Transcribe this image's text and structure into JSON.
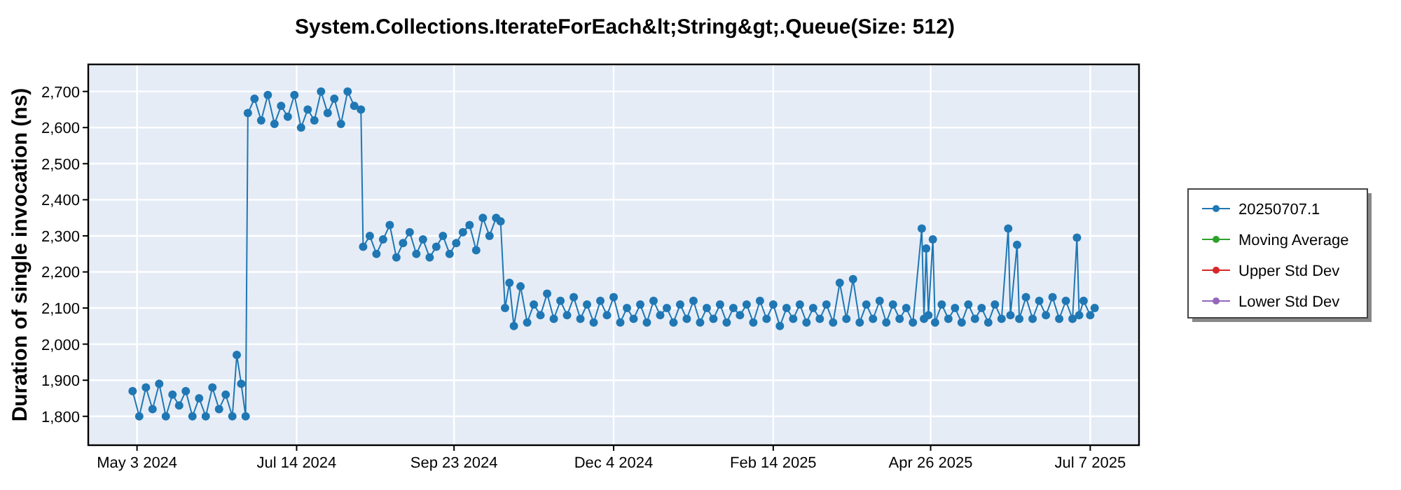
{
  "chart_data": {
    "type": "line",
    "title": "System.Collections.IterateForEach&lt;String&gt;.Queue(Size: 512)",
    "ylabel": "Duration of single invocation (ns)",
    "x": [
      "2024-05-01",
      "2024-05-04",
      "2024-05-07",
      "2024-05-10",
      "2024-05-13",
      "2024-05-16",
      "2024-05-19",
      "2024-05-22",
      "2024-05-25",
      "2024-05-28",
      "2024-05-31",
      "2024-06-03",
      "2024-06-06",
      "2024-06-09",
      "2024-06-12",
      "2024-06-15",
      "2024-06-17",
      "2024-06-19",
      "2024-06-21",
      "2024-06-22",
      "2024-06-25",
      "2024-06-28",
      "2024-07-01",
      "2024-07-04",
      "2024-07-07",
      "2024-07-10",
      "2024-07-13",
      "2024-07-16",
      "2024-07-19",
      "2024-07-22",
      "2024-07-25",
      "2024-07-28",
      "2024-07-31",
      "2024-08-03",
      "2024-08-06",
      "2024-08-09",
      "2024-08-12",
      "2024-08-13",
      "2024-08-16",
      "2024-08-19",
      "2024-08-22",
      "2024-08-25",
      "2024-08-28",
      "2024-08-31",
      "2024-09-03",
      "2024-09-06",
      "2024-09-09",
      "2024-09-12",
      "2024-09-15",
      "2024-09-18",
      "2024-09-21",
      "2024-09-24",
      "2024-09-27",
      "2024-09-30",
      "2024-10-03",
      "2024-10-06",
      "2024-10-09",
      "2024-10-12",
      "2024-10-14",
      "2024-10-16",
      "2024-10-18",
      "2024-10-20",
      "2024-10-23",
      "2024-10-26",
      "2024-10-29",
      "2024-11-01",
      "2024-11-04",
      "2024-11-07",
      "2024-11-10",
      "2024-11-13",
      "2024-11-16",
      "2024-11-19",
      "2024-11-22",
      "2024-11-25",
      "2024-11-28",
      "2024-12-01",
      "2024-12-04",
      "2024-12-07",
      "2024-12-10",
      "2024-12-13",
      "2024-12-16",
      "2024-12-19",
      "2024-12-22",
      "2024-12-25",
      "2024-12-28",
      "2024-12-31",
      "2025-01-03",
      "2025-01-06",
      "2025-01-09",
      "2025-01-12",
      "2025-01-15",
      "2025-01-18",
      "2025-01-21",
      "2025-01-24",
      "2025-01-27",
      "2025-01-30",
      "2025-02-02",
      "2025-02-05",
      "2025-02-08",
      "2025-02-11",
      "2025-02-14",
      "2025-02-17",
      "2025-02-20",
      "2025-02-23",
      "2025-02-26",
      "2025-03-01",
      "2025-03-04",
      "2025-03-07",
      "2025-03-10",
      "2025-03-13",
      "2025-03-16",
      "2025-03-19",
      "2025-03-22",
      "2025-03-25",
      "2025-03-28",
      "2025-03-31",
      "2025-04-03",
      "2025-04-06",
      "2025-04-09",
      "2025-04-12",
      "2025-04-15",
      "2025-04-18",
      "2025-04-22",
      "2025-04-23",
      "2025-04-24",
      "2025-04-25",
      "2025-04-27",
      "2025-04-28",
      "2025-05-01",
      "2025-05-04",
      "2025-05-07",
      "2025-05-10",
      "2025-05-13",
      "2025-05-16",
      "2025-05-19",
      "2025-05-22",
      "2025-05-25",
      "2025-05-28",
      "2025-05-31",
      "2025-06-01",
      "2025-06-04",
      "2025-06-05",
      "2025-06-08",
      "2025-06-11",
      "2025-06-14",
      "2025-06-17",
      "2025-06-20",
      "2025-06-23",
      "2025-06-26",
      "2025-06-29",
      "2025-07-01",
      "2025-07-02",
      "2025-07-04",
      "2025-07-07",
      "2025-07-09"
    ],
    "series": [
      {
        "name": "20250707.1",
        "color": "#1f77b4",
        "values": [
          1870,
          1800,
          1880,
          1820,
          1890,
          1800,
          1860,
          1830,
          1870,
          1800,
          1850,
          1800,
          1880,
          1820,
          1860,
          1800,
          1970,
          1890,
          1800,
          2640,
          2680,
          2620,
          2690,
          2610,
          2660,
          2630,
          2690,
          2600,
          2650,
          2620,
          2700,
          2640,
          2680,
          2610,
          2700,
          2660,
          2650,
          2270,
          2300,
          2250,
          2290,
          2330,
          2240,
          2280,
          2310,
          2250,
          2290,
          2240,
          2270,
          2300,
          2250,
          2280,
          2310,
          2330,
          2260,
          2350,
          2300,
          2350,
          2340,
          2100,
          2170,
          2050,
          2160,
          2060,
          2110,
          2080,
          2140,
          2070,
          2120,
          2080,
          2130,
          2070,
          2110,
          2060,
          2120,
          2080,
          2130,
          2060,
          2100,
          2070,
          2110,
          2060,
          2120,
          2080,
          2100,
          2060,
          2110,
          2070,
          2120,
          2060,
          2100,
          2070,
          2110,
          2060,
          2100,
          2080,
          2110,
          2060,
          2120,
          2070,
          2110,
          2050,
          2100,
          2070,
          2110,
          2060,
          2100,
          2070,
          2110,
          2060,
          2170,
          2070,
          2180,
          2060,
          2110,
          2070,
          2120,
          2060,
          2110,
          2070,
          2100,
          2060,
          2320,
          2070,
          2265,
          2080,
          2290,
          2060,
          2110,
          2070,
          2100,
          2060,
          2110,
          2070,
          2100,
          2060,
          2110,
          2070,
          2320,
          2080,
          2275,
          2070,
          2130,
          2070,
          2120,
          2080,
          2130,
          2070,
          2120,
          2070,
          2295,
          2080,
          2120,
          2080,
          2100
        ]
      },
      {
        "name": "Moving Average",
        "color": "#2ca02c",
        "values": [
          null,
          null,
          null,
          null,
          null,
          null,
          null,
          null,
          null,
          null,
          null,
          null,
          null,
          null,
          null,
          null,
          null,
          null,
          null,
          null,
          null,
          null,
          null,
          null,
          null,
          null,
          null,
          null,
          null,
          null,
          null,
          null,
          null,
          null,
          null,
          null,
          null,
          null,
          null,
          null,
          null,
          null,
          null,
          null,
          null,
          null,
          null,
          null,
          null,
          null,
          null,
          null,
          null,
          null,
          null,
          null,
          null,
          null,
          null,
          null,
          null,
          null,
          null,
          null,
          null,
          null,
          null,
          null,
          null,
          null,
          null,
          null,
          null,
          null,
          null,
          null,
          null,
          null,
          null,
          null,
          null,
          null,
          null,
          null,
          null,
          null,
          null,
          null,
          null,
          null,
          null,
          null,
          null,
          null,
          null,
          null,
          null,
          null,
          null,
          null,
          null,
          null,
          null,
          null,
          null,
          null,
          null,
          null,
          null,
          null,
          null,
          null,
          null,
          null,
          null,
          null,
          null,
          null,
          null,
          null,
          null,
          null,
          null,
          null,
          null,
          null,
          null,
          null,
          null,
          null,
          null,
          null,
          null,
          null,
          null,
          null,
          null,
          null,
          null,
          null,
          null,
          null,
          null,
          null,
          null,
          null,
          null,
          null,
          null,
          null,
          null,
          null,
          null,
          null,
          null
        ]
      },
      {
        "name": "Upper Std Dev",
        "color": "#d62728",
        "values": [
          null,
          null,
          null,
          null,
          null,
          null,
          null,
          null,
          null,
          null,
          null,
          null,
          null,
          null,
          null,
          null,
          null,
          null,
          null,
          null,
          null,
          null,
          null,
          null,
          null,
          null,
          null,
          null,
          null,
          null,
          null,
          null,
          null,
          null,
          null,
          null,
          null,
          null,
          null,
          null,
          null,
          null,
          null,
          null,
          null,
          null,
          null,
          null,
          null,
          null,
          null,
          null,
          null,
          null,
          null,
          null,
          null,
          null,
          null,
          null,
          null,
          null,
          null,
          null,
          null,
          null,
          null,
          null,
          null,
          null,
          null,
          null,
          null,
          null,
          null,
          null,
          null,
          null,
          null,
          null,
          null,
          null,
          null,
          null,
          null,
          null,
          null,
          null,
          null,
          null,
          null,
          null,
          null,
          null,
          null,
          null,
          null,
          null,
          null,
          null,
          null,
          null,
          null,
          null,
          null,
          null,
          null,
          null,
          null,
          null,
          null,
          null,
          null,
          null,
          null,
          null,
          null,
          null,
          null,
          null,
          null,
          null,
          null,
          null,
          null,
          null,
          null,
          null,
          null,
          null,
          null,
          null,
          null,
          null,
          null,
          null,
          null,
          null,
          null,
          null,
          null,
          null,
          null,
          null,
          null,
          null,
          null,
          null,
          null,
          null,
          null,
          null,
          null,
          null,
          null
        ]
      },
      {
        "name": "Lower Std Dev",
        "color": "#9467bd",
        "values": [
          null,
          null,
          null,
          null,
          null,
          null,
          null,
          null,
          null,
          null,
          null,
          null,
          null,
          null,
          null,
          null,
          null,
          null,
          null,
          null,
          null,
          null,
          null,
          null,
          null,
          null,
          null,
          null,
          null,
          null,
          null,
          null,
          null,
          null,
          null,
          null,
          null,
          null,
          null,
          null,
          null,
          null,
          null,
          null,
          null,
          null,
          null,
          null,
          null,
          null,
          null,
          null,
          null,
          null,
          null,
          null,
          null,
          null,
          null,
          null,
          null,
          null,
          null,
          null,
          null,
          null,
          null,
          null,
          null,
          null,
          null,
          null,
          null,
          null,
          null,
          null,
          null,
          null,
          null,
          null,
          null,
          null,
          null,
          null,
          null,
          null,
          null,
          null,
          null,
          null,
          null,
          null,
          null,
          null,
          null,
          null,
          null,
          null,
          null,
          null,
          null,
          null,
          null,
          null,
          null,
          null,
          null,
          null,
          null,
          null,
          null,
          null,
          null,
          null,
          null,
          null,
          null,
          null,
          null,
          null,
          null,
          null,
          null,
          null,
          null,
          null,
          null,
          null,
          null,
          null,
          null,
          null,
          null,
          null,
          null,
          null,
          null,
          null,
          null,
          null,
          null,
          null,
          null,
          null,
          null,
          null,
          null,
          null,
          null,
          null,
          null,
          null,
          null,
          null,
          null
        ]
      }
    ],
    "xlim": [
      "2024-04-11",
      "2025-07-29"
    ],
    "xticks": [
      {
        "value": "2024-05-03",
        "label": "May 3 2024"
      },
      {
        "value": "2024-07-14",
        "label": "Jul 14 2024"
      },
      {
        "value": "2024-09-23",
        "label": "Sep 23 2024"
      },
      {
        "value": "2024-12-04",
        "label": "Dec 4 2024"
      },
      {
        "value": "2025-02-14",
        "label": "Feb 14 2025"
      },
      {
        "value": "2025-04-26",
        "label": "Apr 26 2025"
      },
      {
        "value": "2025-07-07",
        "label": "Jul 7 2025"
      }
    ],
    "ylim": [
      1720,
      2775
    ],
    "yticks": [
      {
        "value": 1800,
        "label": "1,800"
      },
      {
        "value": 1900,
        "label": "1,900"
      },
      {
        "value": 2000,
        "label": "2,000"
      },
      {
        "value": 2100,
        "label": "2,100"
      },
      {
        "value": 2200,
        "label": "2,200"
      },
      {
        "value": 2300,
        "label": "2,300"
      },
      {
        "value": 2400,
        "label": "2,400"
      },
      {
        "value": 2500,
        "label": "2,500"
      },
      {
        "value": 2600,
        "label": "2,600"
      },
      {
        "value": 2700,
        "label": "2,700"
      }
    ],
    "grid": true,
    "legend": "right",
    "marker": "circle",
    "line_style": "solid"
  }
}
